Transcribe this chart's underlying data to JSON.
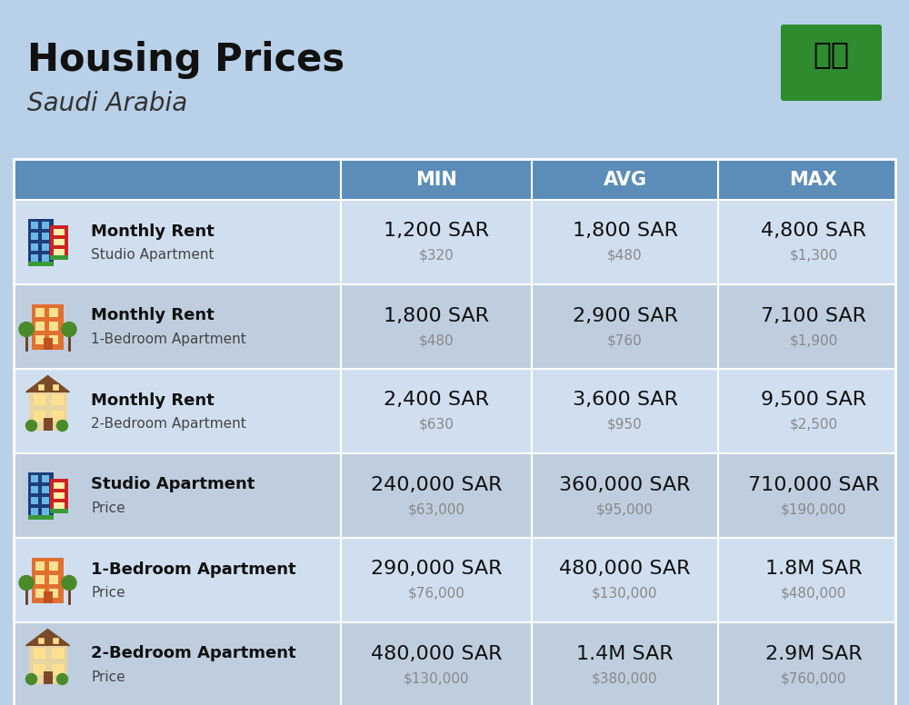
{
  "title": "Housing Prices",
  "subtitle": "Saudi Arabia",
  "bg_color": "#b8d0e8",
  "header_bg": "#5b8db8",
  "row_bg_even": "#d0dff0",
  "row_bg_odd": "#bfcedf",
  "white_line": "#ffffff",
  "columns": [
    "MIN",
    "AVG",
    "MAX"
  ],
  "rows": [
    {
      "label1": "Monthly Rent",
      "label2": "Studio Apartment",
      "min_sar": "1,200 SAR",
      "min_usd": "$320",
      "avg_sar": "1,800 SAR",
      "avg_usd": "$480",
      "max_sar": "4,800 SAR",
      "max_usd": "$1,300",
      "icon_type": "blue_red"
    },
    {
      "label1": "Monthly Rent",
      "label2": "1-Bedroom Apartment",
      "min_sar": "1,800 SAR",
      "min_usd": "$480",
      "avg_sar": "2,900 SAR",
      "avg_usd": "$760",
      "max_sar": "7,100 SAR",
      "max_usd": "$1,900",
      "icon_type": "orange_tree"
    },
    {
      "label1": "Monthly Rent",
      "label2": "2-Bedroom Apartment",
      "min_sar": "2,400 SAR",
      "min_usd": "$630",
      "avg_sar": "3,600 SAR",
      "avg_usd": "$950",
      "max_sar": "9,500 SAR",
      "max_usd": "$2,500",
      "icon_type": "beige_roof"
    },
    {
      "label1": "Studio Apartment",
      "label2": "Price",
      "min_sar": "240,000 SAR",
      "min_usd": "$63,000",
      "avg_sar": "360,000 SAR",
      "avg_usd": "$95,000",
      "max_sar": "710,000 SAR",
      "max_usd": "$190,000",
      "icon_type": "blue_red"
    },
    {
      "label1": "1-Bedroom Apartment",
      "label2": "Price",
      "min_sar": "290,000 SAR",
      "min_usd": "$76,000",
      "avg_sar": "480,000 SAR",
      "avg_usd": "$130,000",
      "max_sar": "1.8M SAR",
      "max_usd": "$480,000",
      "icon_type": "orange_tree"
    },
    {
      "label1": "2-Bedroom Apartment",
      "label2": "Price",
      "min_sar": "480,000 SAR",
      "min_usd": "$130,000",
      "avg_sar": "1.4M SAR",
      "avg_usd": "$380,000",
      "max_sar": "2.9M SAR",
      "max_usd": "$760,000",
      "icon_type": "beige_roof"
    }
  ],
  "flag_green": "#2e8b2e",
  "title_fontsize": 30,
  "subtitle_fontsize": 20,
  "header_fontsize": 15,
  "sar_fontsize": 16,
  "usd_fontsize": 11,
  "label1_fontsize": 13,
  "label2_fontsize": 11
}
